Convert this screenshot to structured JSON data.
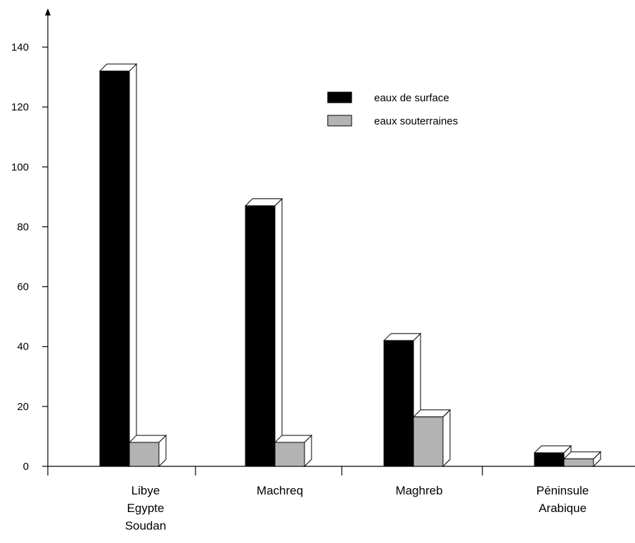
{
  "chart_data": {
    "type": "bar",
    "categories": [
      [
        "Libye",
        "Egypte",
        "Soudan"
      ],
      [
        "Machreq"
      ],
      [
        "Maghreb"
      ],
      [
        "Péninsule",
        "Arabique"
      ]
    ],
    "series": [
      {
        "name": "eaux de surface",
        "values": [
          132,
          87,
          42,
          4.5
        ],
        "color": "#000000"
      },
      {
        "name": "eaux souterraines",
        "values": [
          8,
          8,
          16.5,
          2.5
        ],
        "color": "#b3b3b3"
      }
    ],
    "ylim": [
      0,
      140
    ],
    "yticks": [
      "0",
      "20",
      "40",
      "60",
      "80",
      "100",
      "120",
      "140"
    ],
    "grid": false,
    "legend_position": "top-right",
    "bar_style": "3d"
  }
}
